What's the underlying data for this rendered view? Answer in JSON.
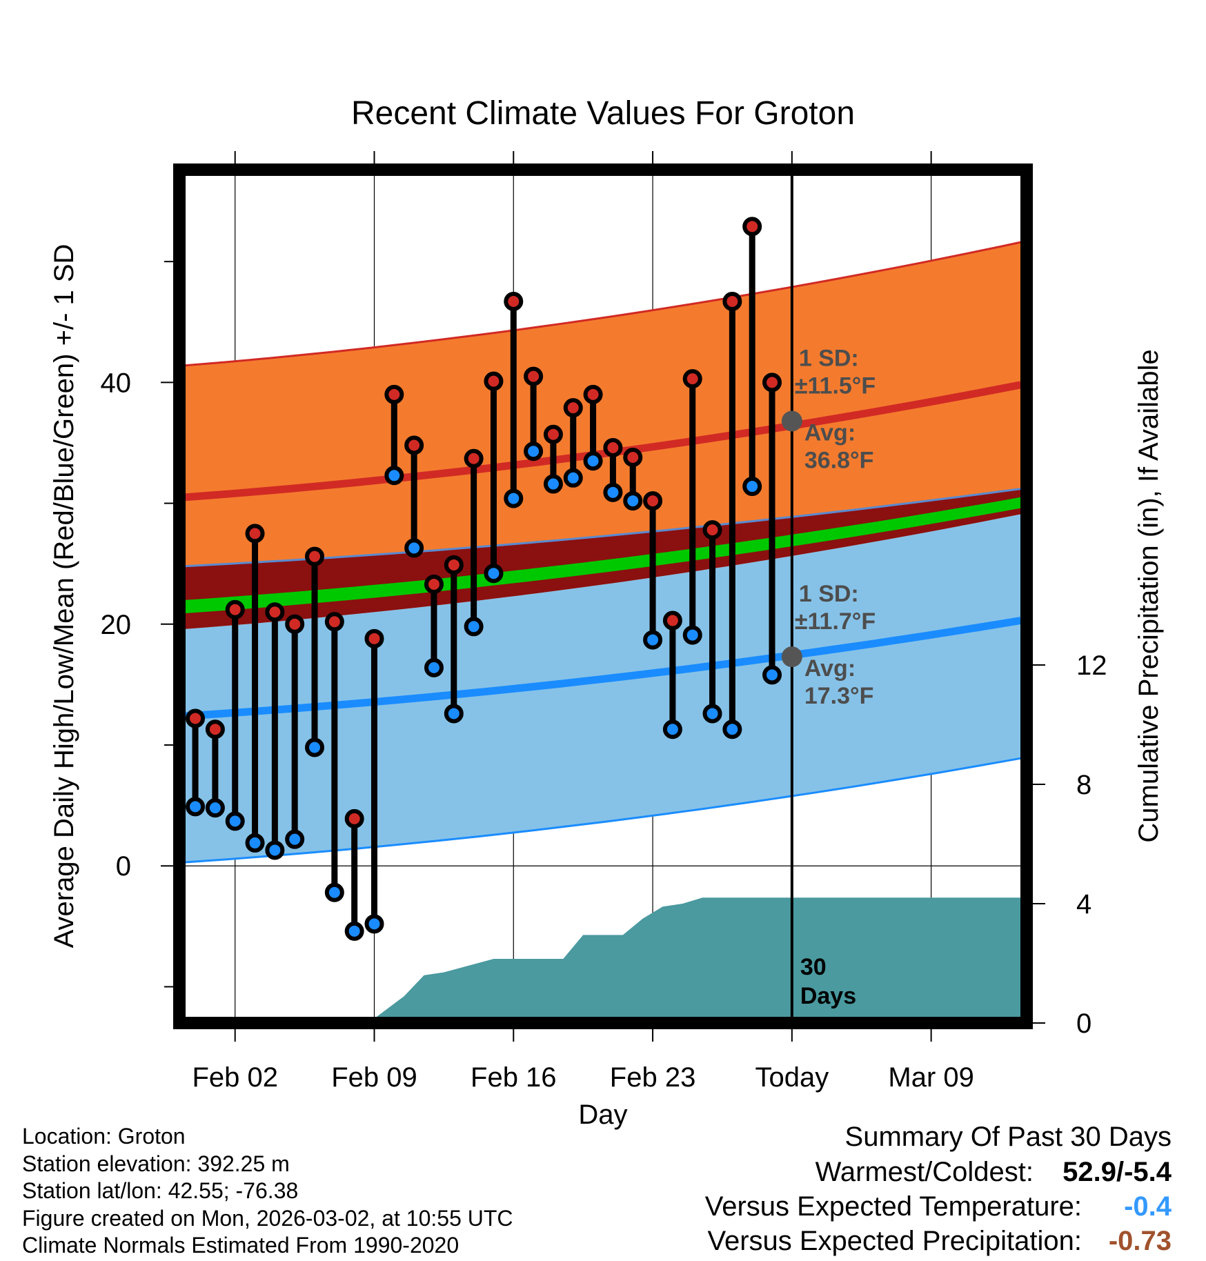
{
  "chart_data": {
    "type": "line",
    "title": "Recent Climate Values For Groton",
    "xlabel": "Day",
    "ylabel": "Average Daily High/Low/Mean (Red/Blue/Green) +/- 1 SD",
    "ylabel_right": "Cumulative Precipitation (in), If Available",
    "y_ticks": [
      "0",
      "20",
      "40"
    ],
    "y_range": [
      -13,
      57.6
    ],
    "y2_ticks": [
      "0",
      "4",
      "8",
      "12"
    ],
    "y2_range": [
      0,
      28.6
    ],
    "x_ticks": [
      {
        "day": 2,
        "label": "Feb 02"
      },
      {
        "day": 9,
        "label": "Feb 09"
      },
      {
        "day": 16,
        "label": "Feb 16"
      },
      {
        "day": 23,
        "label": "Feb 23"
      },
      {
        "day": 30,
        "label": "Today"
      },
      {
        "day": 37,
        "label": "Mar 09"
      }
    ],
    "x_range": [
      -0.8,
      41.8
    ],
    "today_day": 30,
    "normals": {
      "days": [
        -0.5,
        41.5
      ],
      "high_avg": [
        30.5,
        39.8
      ],
      "high_upper": [
        41.4,
        51.6
      ],
      "high_lower": [
        19.6,
        29.1
      ],
      "low_avg": [
        12.4,
        20.3
      ],
      "low_upper": [
        24.8,
        31.2
      ],
      "low_lower": [
        0.3,
        8.9
      ],
      "mean_upper": [
        22.0,
        30.5
      ],
      "mean_lower": [
        20.9,
        29.6
      ]
    },
    "daily": {
      "days": [
        0,
        1,
        2,
        3,
        4,
        5,
        6,
        7,
        8,
        9,
        10,
        11,
        12,
        13,
        14,
        15,
        16,
        17,
        18,
        19,
        20,
        21,
        22,
        23,
        24,
        25,
        26,
        27,
        28,
        29
      ],
      "highs": [
        12.2,
        11.3,
        21.2,
        27.5,
        21.0,
        20.0,
        25.6,
        20.2,
        3.9,
        18.8,
        39.0,
        34.8,
        23.3,
        24.9,
        33.7,
        40.1,
        46.7,
        40.5,
        35.7,
        37.9,
        39.0,
        34.6,
        33.8,
        30.2,
        20.3,
        40.3,
        27.8,
        46.7,
        52.9,
        40.0
      ],
      "lows": [
        4.9,
        4.8,
        3.7,
        1.9,
        1.3,
        2.2,
        9.8,
        -2.2,
        -5.4,
        -4.8,
        32.3,
        26.3,
        16.4,
        12.6,
        19.8,
        24.2,
        30.4,
        34.3,
        31.6,
        32.1,
        33.5,
        30.9,
        30.2,
        18.7,
        11.3,
        19.1,
        12.6,
        11.3,
        31.4,
        15.8
      ]
    },
    "precip_cum": {
      "days": [
        -0.8,
        7.5,
        9,
        10.5,
        11.5,
        12.5,
        15,
        16.5,
        17.5,
        18.5,
        19.5,
        20.5,
        21.5,
        22.5,
        23.5,
        24.5,
        25.5,
        26.5,
        30,
        41.8
      ],
      "values": [
        0,
        0.15,
        0.15,
        0.9,
        1.6,
        1.7,
        2.15,
        2.15,
        2.15,
        2.15,
        2.95,
        2.95,
        2.95,
        3.5,
        3.9,
        4.0,
        4.2,
        4.2,
        4.2,
        4.2
      ]
    },
    "annotations": {
      "high_sd_label": "1 SD:",
      "high_sd_value": "±11.5°F",
      "high_avg_label": "Avg:",
      "high_avg_value": "36.8°F",
      "low_sd_label": "1 SD:",
      "low_sd_value": "±11.7°F",
      "low_avg_label": "Avg:",
      "low_avg_value": "17.3°F",
      "high_avg_today": 36.8,
      "low_avg_today": 17.3,
      "days_count": "30",
      "days_word": "Days"
    }
  },
  "metadata": {
    "location": "Location: Groton",
    "elevation": "Station elevation: 392.25 m",
    "latlon": "Station lat/lon: 42.55; -76.38",
    "created": "Figure created on Mon, 2026-03-02, at 10:55 UTC",
    "normals": "Climate Normals Estimated From 1990-2020"
  },
  "summary": {
    "title": "Summary Of Past 30 Days",
    "warmest_label": "Warmest/Coldest:",
    "warmest_value": "52.9/-5.4",
    "temp_label": "Versus Expected Temperature:",
    "temp_value": "-0.4",
    "precip_label": "Versus Expected Precipitation:",
    "precip_value": "-0.73"
  },
  "colors": {
    "high_band": "#f47b2e",
    "high_line": "#d12a24",
    "low_band": "#86c2e8",
    "low_line": "#1a8cff",
    "mean_band": "#00c800",
    "overlap_band": "#8b1010",
    "precip": "#4a9aa0",
    "high_dot": "#d12a24",
    "low_dot": "#1a8cff",
    "temp_value": "#3399ff",
    "precip_value": "#a0522d"
  }
}
